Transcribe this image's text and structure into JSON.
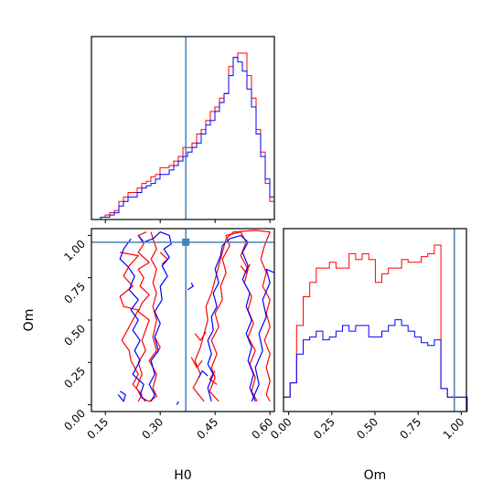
{
  "chart_data": {
    "type": "corner",
    "params": [
      "H0",
      "Om"
    ],
    "truth": {
      "H0": 0.37,
      "Om": 0.96
    },
    "truth_color": "#4682b4",
    "series": [
      {
        "color": "#ff0000"
      },
      {
        "color": "#0000ff"
      }
    ],
    "hist_h0": {
      "edges_start": 0.112,
      "edges_step": 0.0125,
      "xlim": [
        0.112,
        0.612
      ],
      "red": [
        0,
        0,
        0.5,
        1,
        1.5,
        2,
        4,
        5,
        6,
        6,
        7,
        8,
        8.5,
        9.5,
        10,
        11.5,
        11.5,
        12,
        13,
        14,
        16,
        16,
        17,
        19,
        20,
        22,
        24,
        25,
        27,
        28,
        34,
        36,
        37,
        37,
        32,
        27,
        20,
        15,
        8,
        4
      ],
      "blue": [
        0,
        0,
        0.5,
        0.5,
        1,
        1.5,
        3,
        4,
        5,
        5,
        6,
        7,
        7.5,
        8,
        9,
        10,
        10,
        11,
        12,
        13,
        14,
        15,
        16,
        17,
        19,
        21,
        22,
        24,
        26,
        28,
        32,
        36,
        35,
        33,
        29,
        25,
        19,
        14,
        9,
        5
      ]
    },
    "hist_om": {
      "edges_start": -0.03,
      "edges_step": 0.038,
      "xlim": [
        -0.03,
        1.03
      ],
      "red": [
        0.5,
        1,
        3,
        4,
        4.5,
        5,
        5,
        5.2,
        5,
        5,
        5.5,
        5.3,
        5.5,
        5.3,
        4.5,
        4.8,
        5,
        5,
        5.3,
        5.2,
        5.2,
        5.4,
        5.5,
        5.8,
        0.8,
        0.5,
        0.5,
        0.5
      ],
      "blue": [
        0.5,
        1,
        2,
        2.5,
        2.6,
        2.8,
        2.5,
        2.6,
        2.8,
        3,
        2.8,
        3,
        3,
        2.6,
        2.6,
        2.8,
        3,
        3.2,
        3,
        2.8,
        2.6,
        2.4,
        2.3,
        2.5,
        0.8,
        0.5,
        0.5,
        0.5
      ]
    },
    "ticks_h0": [
      {
        "value": 0.15,
        "label": "0.15"
      },
      {
        "value": 0.3,
        "label": "0.30"
      },
      {
        "value": 0.45,
        "label": "0.45"
      },
      {
        "value": 0.6,
        "label": "0.60"
      }
    ],
    "ticks_om": [
      {
        "value": 0.0,
        "label": "0.00"
      },
      {
        "value": 0.25,
        "label": "0.25"
      },
      {
        "value": 0.5,
        "label": "0.50"
      },
      {
        "value": 0.75,
        "label": "0.75"
      },
      {
        "value": 1.0,
        "label": "1.00"
      }
    ],
    "xlabel_left": "H0",
    "xlabel_right": "Om",
    "ylabel_left": "Om",
    "contours": {
      "red": [
        [
          [
            0.262,
            1.02
          ],
          [
            0.24,
            1.0
          ],
          [
            0.255,
            0.95
          ],
          [
            0.24,
            0.9
          ],
          [
            0.27,
            0.84
          ],
          [
            0.24,
            0.8
          ],
          [
            0.255,
            0.75
          ],
          [
            0.245,
            0.7
          ],
          [
            0.27,
            0.65
          ],
          [
            0.25,
            0.6
          ],
          [
            0.24,
            0.55
          ],
          [
            0.27,
            0.5
          ],
          [
            0.26,
            0.44
          ],
          [
            0.25,
            0.38
          ],
          [
            0.26,
            0.32
          ],
          [
            0.24,
            0.25
          ],
          [
            0.25,
            0.18
          ],
          [
            0.235,
            0.1
          ],
          [
            0.25,
            0.04
          ],
          [
            0.27,
            0.02
          ],
          [
            0.29,
            0.05
          ],
          [
            0.28,
            0.1
          ],
          [
            0.29,
            0.18
          ],
          [
            0.27,
            0.26
          ],
          [
            0.29,
            0.32
          ],
          [
            0.28,
            0.4
          ],
          [
            0.29,
            0.5
          ],
          [
            0.28,
            0.58
          ],
          [
            0.29,
            0.66
          ],
          [
            0.28,
            0.72
          ],
          [
            0.29,
            0.8
          ],
          [
            0.275,
            0.86
          ],
          [
            0.29,
            0.92
          ],
          [
            0.28,
            0.98
          ],
          [
            0.275,
            1.02
          ]
        ],
        [
          [
            0.19,
            0.9
          ],
          [
            0.24,
            0.88
          ],
          [
            0.215,
            0.82
          ],
          [
            0.2,
            0.76
          ],
          [
            0.225,
            0.7
          ],
          [
            0.19,
            0.64
          ],
          [
            0.2,
            0.58
          ],
          [
            0.24,
            0.56
          ],
          [
            0.225,
            0.5
          ],
          [
            0.21,
            0.44
          ],
          [
            0.195,
            0.38
          ],
          [
            0.215,
            0.32
          ],
          [
            0.22,
            0.26
          ],
          [
            0.24,
            0.18
          ],
          [
            0.225,
            0.12
          ],
          [
            0.25,
            0.06
          ],
          [
            0.24,
            0.02
          ]
        ],
        [
          [
            0.46,
            0.02
          ],
          [
            0.435,
            0.08
          ],
          [
            0.45,
            0.16
          ],
          [
            0.44,
            0.22
          ],
          [
            0.455,
            0.3
          ],
          [
            0.44,
            0.38
          ],
          [
            0.46,
            0.46
          ],
          [
            0.45,
            0.54
          ],
          [
            0.47,
            0.62
          ],
          [
            0.465,
            0.7
          ],
          [
            0.48,
            0.78
          ],
          [
            0.47,
            0.86
          ],
          [
            0.49,
            0.94
          ],
          [
            0.48,
            1.0
          ],
          [
            0.52,
            1.02
          ],
          [
            0.535,
            0.96
          ],
          [
            0.52,
            0.88
          ],
          [
            0.54,
            0.8
          ],
          [
            0.53,
            0.72
          ],
          [
            0.55,
            0.64
          ],
          [
            0.54,
            0.56
          ],
          [
            0.555,
            0.48
          ],
          [
            0.54,
            0.4
          ],
          [
            0.56,
            0.32
          ],
          [
            0.545,
            0.24
          ],
          [
            0.56,
            0.16
          ],
          [
            0.55,
            0.08
          ],
          [
            0.565,
            0.02
          ]
        ],
        [
          [
            0.42,
            0.02
          ],
          [
            0.39,
            0.1
          ],
          [
            0.41,
            0.18
          ],
          [
            0.395,
            0.26
          ],
          [
            0.41,
            0.34
          ],
          [
            0.42,
            0.42
          ],
          [
            0.43,
            0.5
          ],
          [
            0.425,
            0.58
          ],
          [
            0.44,
            0.66
          ],
          [
            0.45,
            0.74
          ],
          [
            0.46,
            0.82
          ],
          [
            0.47,
            0.9
          ],
          [
            0.48,
            0.98
          ],
          [
            0.5,
            1.02
          ],
          [
            0.56,
            1.03
          ],
          [
            0.6,
            1.02
          ],
          [
            0.585,
            0.94
          ],
          [
            0.575,
            0.86
          ],
          [
            0.59,
            0.78
          ],
          [
            0.58,
            0.7
          ],
          [
            0.6,
            0.62
          ],
          [
            0.59,
            0.54
          ],
          [
            0.6,
            0.46
          ],
          [
            0.585,
            0.38
          ],
          [
            0.6,
            0.3
          ],
          [
            0.59,
            0.22
          ],
          [
            0.6,
            0.14
          ],
          [
            0.59,
            0.06
          ],
          [
            0.6,
            0.02
          ]
        ],
        [
          [
            0.385,
            0.28
          ],
          [
            0.4,
            0.22
          ],
          [
            0.415,
            0.26
          ]
        ],
        [
          [
            0.395,
            0.42
          ],
          [
            0.41,
            0.38
          ],
          [
            0.425,
            0.43
          ]
        ],
        [
          [
            0.45,
            0.2
          ],
          [
            0.435,
            0.15
          ],
          [
            0.455,
            0.12
          ]
        ],
        [
          [
            0.52,
            0.82
          ],
          [
            0.535,
            0.78
          ],
          [
            0.545,
            0.83
          ]
        ],
        [
          [
            0.285,
            0.4
          ],
          [
            0.3,
            0.34
          ],
          [
            0.29,
            0.3
          ]
        ],
        [
          [
            0.3,
            0.9
          ],
          [
            0.32,
            0.86
          ],
          [
            0.305,
            0.83
          ]
        ]
      ],
      "blue": [
        [
          [
            0.24,
            1.0
          ],
          [
            0.255,
            0.96
          ],
          [
            0.28,
            0.98
          ],
          [
            0.3,
            1.02
          ],
          [
            0.325,
            1.0
          ],
          [
            0.33,
            0.95
          ],
          [
            0.31,
            0.92
          ],
          [
            0.325,
            0.87
          ],
          [
            0.305,
            0.82
          ],
          [
            0.32,
            0.76
          ],
          [
            0.3,
            0.7
          ],
          [
            0.305,
            0.62
          ],
          [
            0.285,
            0.55
          ],
          [
            0.3,
            0.48
          ],
          [
            0.285,
            0.4
          ],
          [
            0.295,
            0.32
          ],
          [
            0.275,
            0.26
          ],
          [
            0.285,
            0.18
          ],
          [
            0.27,
            0.12
          ],
          [
            0.285,
            0.06
          ],
          [
            0.275,
            0.02
          ]
        ],
        [
          [
            0.22,
            0.98
          ],
          [
            0.2,
            0.92
          ],
          [
            0.19,
            0.86
          ],
          [
            0.21,
            0.82
          ],
          [
            0.23,
            0.76
          ],
          [
            0.215,
            0.68
          ],
          [
            0.24,
            0.62
          ],
          [
            0.22,
            0.56
          ],
          [
            0.24,
            0.5
          ],
          [
            0.225,
            0.44
          ],
          [
            0.245,
            0.38
          ],
          [
            0.23,
            0.32
          ],
          [
            0.245,
            0.26
          ],
          [
            0.225,
            0.18
          ],
          [
            0.255,
            0.12
          ],
          [
            0.245,
            0.06
          ],
          [
            0.26,
            0.02
          ]
        ],
        [
          [
            0.44,
            0.02
          ],
          [
            0.43,
            0.1
          ],
          [
            0.445,
            0.18
          ],
          [
            0.43,
            0.24
          ],
          [
            0.44,
            0.3
          ],
          [
            0.43,
            0.38
          ],
          [
            0.445,
            0.44
          ],
          [
            0.44,
            0.52
          ],
          [
            0.455,
            0.58
          ],
          [
            0.445,
            0.66
          ],
          [
            0.46,
            0.72
          ],
          [
            0.45,
            0.8
          ],
          [
            0.465,
            0.88
          ],
          [
            0.47,
            0.94
          ],
          [
            0.49,
            0.98
          ],
          [
            0.52,
            1.0
          ],
          [
            0.54,
            0.96
          ],
          [
            0.525,
            0.9
          ],
          [
            0.54,
            0.82
          ],
          [
            0.525,
            0.74
          ],
          [
            0.545,
            0.66
          ],
          [
            0.535,
            0.58
          ],
          [
            0.55,
            0.5
          ],
          [
            0.535,
            0.42
          ],
          [
            0.55,
            0.34
          ],
          [
            0.54,
            0.26
          ],
          [
            0.555,
            0.18
          ],
          [
            0.545,
            0.1
          ],
          [
            0.56,
            0.02
          ]
        ],
        [
          [
            0.55,
            0.02
          ],
          [
            0.57,
            0.12
          ],
          [
            0.56,
            0.22
          ],
          [
            0.58,
            0.32
          ],
          [
            0.57,
            0.42
          ],
          [
            0.59,
            0.52
          ],
          [
            0.58,
            0.62
          ],
          [
            0.6,
            0.72
          ],
          [
            0.59,
            0.8
          ],
          [
            0.612,
            0.78
          ]
        ],
        [
          [
            0.185,
            0.06
          ],
          [
            0.2,
            0.02
          ],
          [
            0.205,
            0.06
          ],
          [
            0.19,
            0.08
          ]
        ],
        [
          [
            0.375,
            0.68
          ],
          [
            0.39,
            0.7
          ],
          [
            0.385,
            0.72
          ]
        ],
        [
          [
            0.405,
            0.16
          ],
          [
            0.415,
            0.2
          ],
          [
            0.43,
            0.17
          ]
        ],
        [
          [
            0.345,
            0.0
          ],
          [
            0.35,
            0.02
          ]
        ]
      ]
    }
  }
}
